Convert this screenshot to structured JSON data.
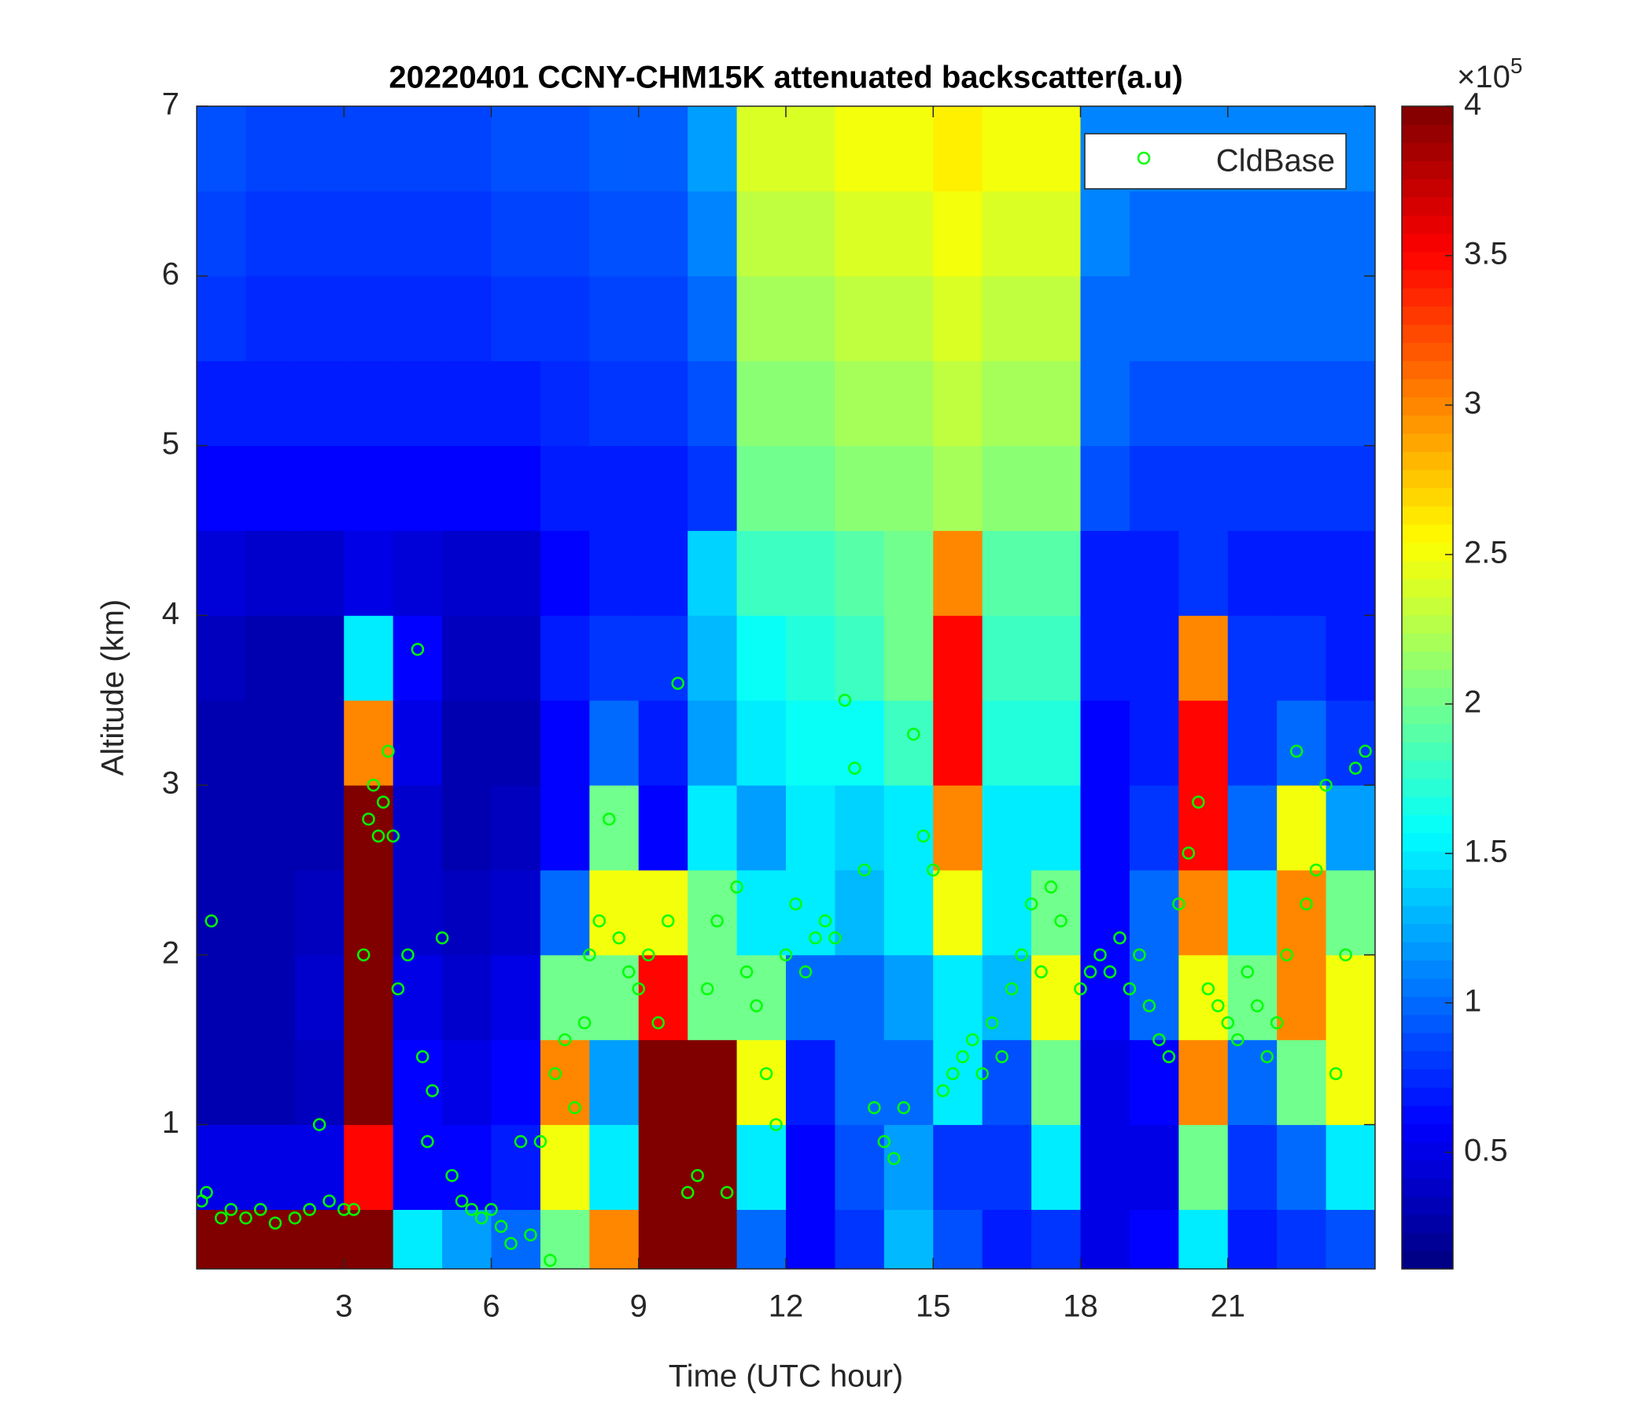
{
  "chart_data": {
    "type": "heatmap-scatter",
    "title": "20220401 CCNY-CHM15K attenuated backscatter(a.u)",
    "xlabel": "Time (UTC hour)",
    "ylabel": "Altitude (km)",
    "xlim": [
      0,
      24
    ],
    "xticks": [
      3,
      6,
      9,
      12,
      15,
      18,
      21
    ],
    "ylim": [
      0.15,
      7
    ],
    "yticks": [
      1,
      2,
      3,
      4,
      5,
      6,
      7
    ],
    "clim": [
      0.11,
      4
    ],
    "cticks": [
      0.5,
      1,
      1.5,
      2,
      2.5,
      3,
      3.5,
      4
    ],
    "colorbar_multiplier": "×10",
    "colorbar_exponent": "5",
    "colormap": "jet",
    "grid": false,
    "legend_position": "upper right",
    "x_bins": [
      0,
      1,
      2,
      3,
      4,
      5,
      6,
      7,
      8,
      9,
      10,
      11,
      12,
      13,
      14,
      15,
      16,
      17,
      18,
      19,
      20,
      21,
      22,
      23,
      24
    ],
    "y_bins": [
      0.15,
      0.5,
      1,
      1.5,
      2,
      2.5,
      3,
      3.5,
      4,
      4.5,
      5,
      5.5,
      6,
      6.5,
      7
    ],
    "z": [
      [
        4,
        4,
        4,
        4,
        1.5,
        1.2,
        1,
        2,
        3,
        4,
        4,
        1,
        0.6,
        0.8,
        1.3,
        0.9,
        0.7,
        0.8,
        0.5,
        0.6,
        1.5,
        0.7,
        0.8,
        0.9
      ],
      [
        0.5,
        0.5,
        0.5,
        3.5,
        0.6,
        0.6,
        0.7,
        2.5,
        1.5,
        4,
        4,
        1.5,
        0.6,
        0.9,
        1.2,
        0.8,
        0.8,
        1.5,
        0.5,
        0.5,
        2,
        0.8,
        1,
        1.5
      ],
      [
        0.3,
        0.3,
        0.35,
        4,
        0.6,
        0.5,
        0.6,
        3,
        1.2,
        4,
        4,
        2.5,
        0.7,
        1,
        1,
        1.5,
        0.9,
        2,
        0.5,
        0.6,
        3,
        1,
        2,
        2.5
      ],
      [
        0.3,
        0.3,
        0.4,
        4,
        0.5,
        0.4,
        0.5,
        2,
        2,
        3.5,
        2,
        2,
        1,
        1,
        1.2,
        1.5,
        1.3,
        2.5,
        0.6,
        1,
        2.5,
        2,
        3,
        2.5
      ],
      [
        0.3,
        0.3,
        0.35,
        4,
        0.4,
        0.35,
        0.4,
        1,
        2.5,
        2.5,
        2,
        1.5,
        1.5,
        1.3,
        1.5,
        2.5,
        1.5,
        2,
        0.6,
        1,
        3,
        1.5,
        3,
        2
      ],
      [
        0.3,
        0.3,
        0.3,
        4,
        0.4,
        0.3,
        0.35,
        0.6,
        2,
        0.6,
        1.5,
        1.2,
        1.5,
        1.4,
        1.5,
        3,
        1.5,
        1.5,
        0.6,
        0.8,
        3.5,
        1,
        2.5,
        1.2
      ],
      [
        0.3,
        0.3,
        0.3,
        3,
        0.5,
        0.3,
        0.3,
        0.6,
        1,
        0.7,
        1.2,
        1.5,
        1.6,
        1.6,
        1.8,
        3.5,
        1.7,
        1.7,
        0.6,
        0.7,
        3.5,
        0.8,
        1,
        0.8
      ],
      [
        0.35,
        0.3,
        0.3,
        1.5,
        0.6,
        0.35,
        0.35,
        0.7,
        0.8,
        0.8,
        1.3,
        1.6,
        1.7,
        1.8,
        2,
        3.5,
        1.8,
        1.8,
        0.7,
        0.7,
        3,
        0.8,
        0.8,
        0.7
      ],
      [
        0.45,
        0.4,
        0.4,
        0.5,
        0.45,
        0.4,
        0.4,
        0.6,
        0.7,
        0.7,
        1.4,
        1.8,
        1.8,
        1.9,
        2,
        3,
        1.9,
        1.9,
        0.7,
        0.7,
        0.8,
        0.7,
        0.7,
        0.7
      ],
      [
        0.6,
        0.6,
        0.6,
        0.6,
        0.6,
        0.6,
        0.6,
        0.7,
        0.7,
        0.7,
        0.8,
        2,
        2,
        2.1,
        2.1,
        2.2,
        2.1,
        2.1,
        0.9,
        0.8,
        0.8,
        0.8,
        0.8,
        0.8
      ],
      [
        0.7,
        0.7,
        0.7,
        0.7,
        0.7,
        0.7,
        0.7,
        0.75,
        0.8,
        0.8,
        0.9,
        2.1,
        2.1,
        2.2,
        2.2,
        2.3,
        2.2,
        2.2,
        1,
        0.9,
        0.9,
        0.9,
        0.9,
        0.9
      ],
      [
        0.8,
        0.75,
        0.75,
        0.75,
        0.75,
        0.75,
        0.8,
        0.8,
        0.85,
        0.85,
        1,
        2.2,
        2.2,
        2.3,
        2.3,
        2.4,
        2.3,
        2.3,
        1,
        1,
        1,
        1,
        1,
        1
      ],
      [
        0.85,
        0.8,
        0.8,
        0.8,
        0.8,
        0.8,
        0.85,
        0.85,
        0.9,
        0.9,
        1.1,
        2.3,
        2.3,
        2.4,
        2.4,
        2.5,
        2.4,
        2.4,
        1.1,
        1,
        1,
        1,
        1,
        1
      ],
      [
        0.9,
        0.85,
        0.85,
        0.85,
        0.85,
        0.85,
        0.9,
        0.9,
        0.95,
        0.95,
        1.2,
        2.4,
        2.4,
        2.5,
        2.5,
        2.6,
        2.5,
        2.5,
        1.1,
        1.1,
        1.1,
        1.1,
        1.1,
        1.1
      ]
    ],
    "series": [
      {
        "name": "CldBase",
        "color": "#00ff00",
        "x": [
          0.1,
          0.2,
          0.3,
          0.5,
          0.7,
          1,
          1.3,
          1.6,
          2,
          2.3,
          2.5,
          2.7,
          3,
          3.2,
          3.4,
          3.5,
          3.6,
          3.7,
          3.8,
          3.9,
          4,
          4.1,
          4.3,
          4.5,
          4.6,
          4.7,
          4.8,
          5,
          5.2,
          5.4,
          5.6,
          5.8,
          6,
          6.2,
          6.4,
          6.6,
          6.8,
          7,
          7.2,
          7.3,
          7.5,
          7.7,
          7.9,
          8,
          8.2,
          8.4,
          8.6,
          8.8,
          9,
          9.2,
          9.4,
          9.6,
          9.8,
          10,
          10.2,
          10.4,
          10.6,
          10.8,
          11,
          11.2,
          11.4,
          11.6,
          11.8,
          12,
          12.2,
          12.4,
          12.6,
          12.8,
          13,
          13.2,
          13.4,
          13.6,
          13.8,
          14,
          14.2,
          14.4,
          14.6,
          14.8,
          15,
          15.2,
          15.4,
          15.6,
          15.8,
          16,
          16.2,
          16.4,
          16.6,
          16.8,
          17,
          17.2,
          17.4,
          17.6,
          18,
          18.2,
          18.4,
          18.6,
          18.8,
          19,
          19.2,
          19.4,
          19.6,
          19.8,
          20,
          20.2,
          20.4,
          20.6,
          20.8,
          21,
          21.2,
          21.4,
          21.6,
          21.8,
          22,
          22.2,
          22.4,
          22.6,
          22.8,
          23,
          23.2,
          23.4,
          23.6,
          23.8
        ],
        "values": [
          0.55,
          0.6,
          2.2,
          0.45,
          0.5,
          0.45,
          0.5,
          0.42,
          0.45,
          0.5,
          1.0,
          0.55,
          0.5,
          0.5,
          2.0,
          2.8,
          3.0,
          2.7,
          2.9,
          3.2,
          2.7,
          1.8,
          2.0,
          3.8,
          1.4,
          0.9,
          1.2,
          2.1,
          0.7,
          0.55,
          0.5,
          0.45,
          0.5,
          0.4,
          0.3,
          0.9,
          0.35,
          0.9,
          0.2,
          1.3,
          1.5,
          1.1,
          1.6,
          2.0,
          2.2,
          2.8,
          2.1,
          1.9,
          1.8,
          2.0,
          1.6,
          2.2,
          3.6,
          0.6,
          0.7,
          1.8,
          2.2,
          0.6,
          2.4,
          1.9,
          1.7,
          1.3,
          1.0,
          2.0,
          2.3,
          1.9,
          2.1,
          2.2,
          2.1,
          3.5,
          3.1,
          2.5,
          1.1,
          0.9,
          0.8,
          1.1,
          3.3,
          2.7,
          2.5,
          1.2,
          1.3,
          1.4,
          1.5,
          1.3,
          1.6,
          1.4,
          1.8,
          2.0,
          2.3,
          1.9,
          2.4,
          2.2,
          1.8,
          1.9,
          2.0,
          1.9,
          2.1,
          1.8,
          2.0,
          1.7,
          1.5,
          1.4,
          2.3,
          2.6,
          2.9,
          1.8,
          1.7,
          1.6,
          1.5,
          1.9,
          1.7,
          1.4,
          1.6,
          2.0,
          3.2,
          2.3,
          2.5,
          3.0,
          1.3,
          2.0,
          3.1,
          3.2
        ]
      }
    ]
  }
}
